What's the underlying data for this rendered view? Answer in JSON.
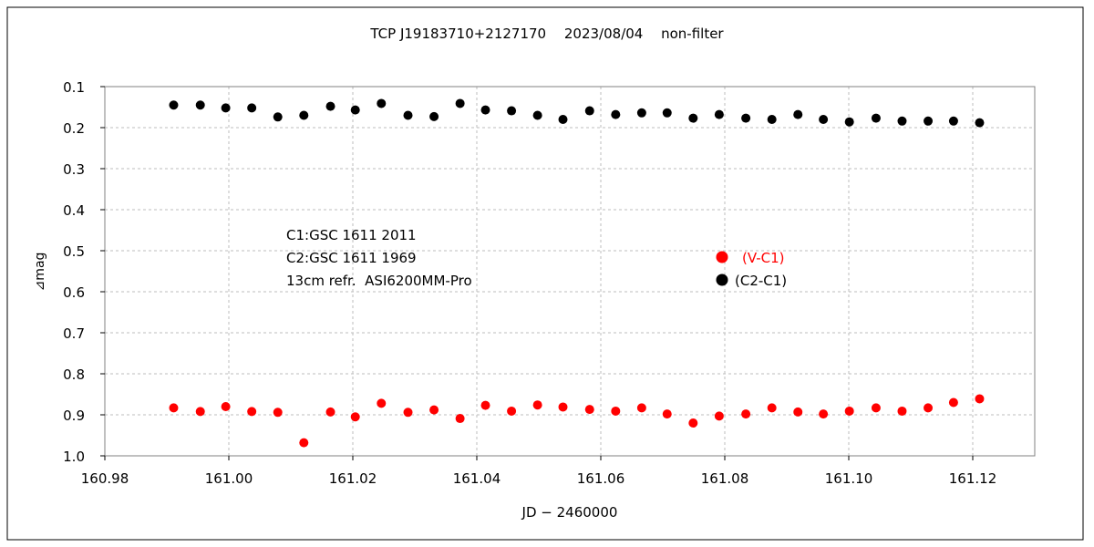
{
  "chart_data": {
    "type": "scatter",
    "title": "TCP J19183710+2127170　 2023/08/04　 non-filter",
    "xlabel": "JD − 2460000",
    "ylabel": "⊿mag",
    "xlim": [
      160.98,
      161.13
    ],
    "ylim": [
      1.0,
      0.1
    ],
    "y_inverted": true,
    "grid": true,
    "x_ticks": [
      "160.98",
      "161.00",
      "161.02",
      "161.04",
      "161.06",
      "161.08",
      "161.10",
      "161.12"
    ],
    "y_ticks": [
      "0.1",
      "0.2",
      "0.3",
      "0.4",
      "0.5",
      "0.6",
      "0.7",
      "0.8",
      "0.9",
      "1.0"
    ],
    "annotations": [
      "C1:GSC 1611 2011",
      "C2:GSC 1611 1969",
      "13cm refr.  ASI6200MM-Pro"
    ],
    "legend_position": "center-right",
    "series": [
      {
        "name": "(V-C1)",
        "color": "#ff0000",
        "x": [
          160.9911,
          160.9954,
          160.9995,
          161.0037,
          161.0079,
          161.0121,
          161.0164,
          161.0204,
          161.0246,
          161.0289,
          161.0331,
          161.0373,
          161.0414,
          161.0456,
          161.0498,
          161.0539,
          161.0582,
          161.0624,
          161.0666,
          161.0707,
          161.0749,
          161.0791,
          161.0834,
          161.0876,
          161.0918,
          161.0959,
          161.1001,
          161.1044,
          161.1086,
          161.1128,
          161.1169,
          161.1211
        ],
        "y": [
          0.883,
          0.892,
          0.88,
          0.892,
          0.894,
          0.968,
          0.893,
          0.905,
          0.872,
          0.894,
          0.888,
          0.909,
          0.877,
          0.891,
          0.876,
          0.881,
          0.887,
          0.891,
          0.883,
          0.898,
          0.92,
          0.903,
          0.898,
          0.883,
          0.893,
          0.898,
          0.891,
          0.883,
          0.891,
          0.883,
          0.87,
          0.861
        ]
      },
      {
        "name": "(C2-C1)",
        "color": "#000000",
        "x": [
          160.9911,
          160.9954,
          160.9995,
          161.0037,
          161.0079,
          161.0121,
          161.0164,
          161.0204,
          161.0246,
          161.0289,
          161.0331,
          161.0373,
          161.0414,
          161.0456,
          161.0498,
          161.0539,
          161.0582,
          161.0624,
          161.0666,
          161.0707,
          161.0749,
          161.0791,
          161.0834,
          161.0876,
          161.0918,
          161.0959,
          161.1001,
          161.1044,
          161.1086,
          161.1128,
          161.1169,
          161.1211
        ],
        "y": [
          0.145,
          0.145,
          0.152,
          0.152,
          0.174,
          0.17,
          0.148,
          0.157,
          0.141,
          0.17,
          0.173,
          0.141,
          0.157,
          0.159,
          0.17,
          0.18,
          0.159,
          0.168,
          0.164,
          0.164,
          0.177,
          0.168,
          0.177,
          0.18,
          0.168,
          0.18,
          0.186,
          0.177,
          0.184,
          0.184,
          0.184,
          0.188
        ]
      }
    ]
  }
}
